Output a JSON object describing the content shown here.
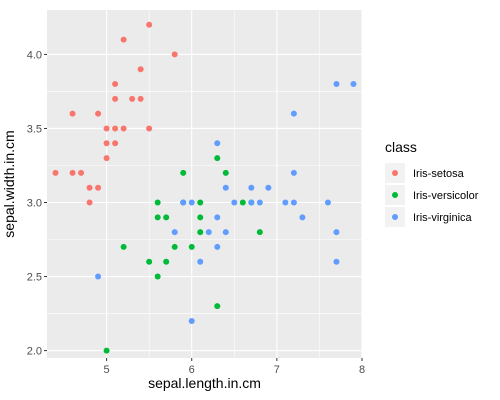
{
  "chart_data": {
    "type": "scatter",
    "title": "",
    "xlabel": "sepal.length.in.cm",
    "ylabel": "sepal.width.in.cm",
    "xlim": [
      4.3,
      8.0
    ],
    "ylim": [
      1.95,
      4.3
    ],
    "x_ticks": [
      5,
      6,
      7,
      8
    ],
    "y_ticks": [
      2.0,
      2.5,
      3.0,
      3.5,
      4.0
    ],
    "y_tick_labels": [
      "2.0",
      "2.5",
      "3.0",
      "3.5",
      "4.0"
    ],
    "grid": true,
    "legend": {
      "title": "class",
      "position": "right"
    },
    "series": [
      {
        "name": "Iris-setosa",
        "color": "#F8766D",
        "points": [
          [
            4.4,
            3.2
          ],
          [
            4.6,
            3.6
          ],
          [
            4.6,
            3.2
          ],
          [
            4.7,
            3.2
          ],
          [
            4.8,
            3.1
          ],
          [
            4.8,
            3.0
          ],
          [
            4.9,
            3.6
          ],
          [
            4.9,
            3.1
          ],
          [
            5.0,
            3.5
          ],
          [
            5.0,
            3.4
          ],
          [
            5.0,
            3.3
          ],
          [
            5.1,
            3.8
          ],
          [
            5.1,
            3.7
          ],
          [
            5.1,
            3.5
          ],
          [
            5.1,
            3.4
          ],
          [
            5.2,
            4.1
          ],
          [
            5.2,
            3.5
          ],
          [
            5.3,
            3.7
          ],
          [
            5.4,
            3.9
          ],
          [
            5.4,
            3.7
          ],
          [
            5.5,
            4.2
          ],
          [
            5.5,
            3.5
          ],
          [
            5.8,
            4.0
          ]
        ]
      },
      {
        "name": "Iris-versicolor",
        "color": "#00BA38",
        "points": [
          [
            5.0,
            2.0
          ],
          [
            5.2,
            2.7
          ],
          [
            5.5,
            2.6
          ],
          [
            5.6,
            3.0
          ],
          [
            5.6,
            2.9
          ],
          [
            5.6,
            2.5
          ],
          [
            5.7,
            2.6
          ],
          [
            5.7,
            2.9
          ],
          [
            5.8,
            2.7
          ],
          [
            5.9,
            3.2
          ],
          [
            5.9,
            3.0
          ],
          [
            6.0,
            2.7
          ],
          [
            6.1,
            3.0
          ],
          [
            6.1,
            2.9
          ],
          [
            6.1,
            2.8
          ],
          [
            6.3,
            3.3
          ],
          [
            6.3,
            2.3
          ],
          [
            6.4,
            3.2
          ],
          [
            6.6,
            3.0
          ],
          [
            6.7,
            3.0
          ],
          [
            6.8,
            2.8
          ]
        ]
      },
      {
        "name": "Iris-virginica",
        "color": "#619CFF",
        "points": [
          [
            4.9,
            2.5
          ],
          [
            5.8,
            2.8
          ],
          [
            5.9,
            3.0
          ],
          [
            6.0,
            3.0
          ],
          [
            6.0,
            2.2
          ],
          [
            6.1,
            2.6
          ],
          [
            6.2,
            2.8
          ],
          [
            6.3,
            3.4
          ],
          [
            6.3,
            2.9
          ],
          [
            6.3,
            2.7
          ],
          [
            6.4,
            3.1
          ],
          [
            6.4,
            2.8
          ],
          [
            6.5,
            3.0
          ],
          [
            6.7,
            3.0
          ],
          [
            6.7,
            3.1
          ],
          [
            6.8,
            3.0
          ],
          [
            6.9,
            3.1
          ],
          [
            7.1,
            3.0
          ],
          [
            7.2,
            3.6
          ],
          [
            7.2,
            3.2
          ],
          [
            7.2,
            3.0
          ],
          [
            7.3,
            2.9
          ],
          [
            7.6,
            3.0
          ],
          [
            7.7,
            3.8
          ],
          [
            7.7,
            2.8
          ],
          [
            7.7,
            2.6
          ],
          [
            7.9,
            3.8
          ]
        ]
      }
    ]
  }
}
